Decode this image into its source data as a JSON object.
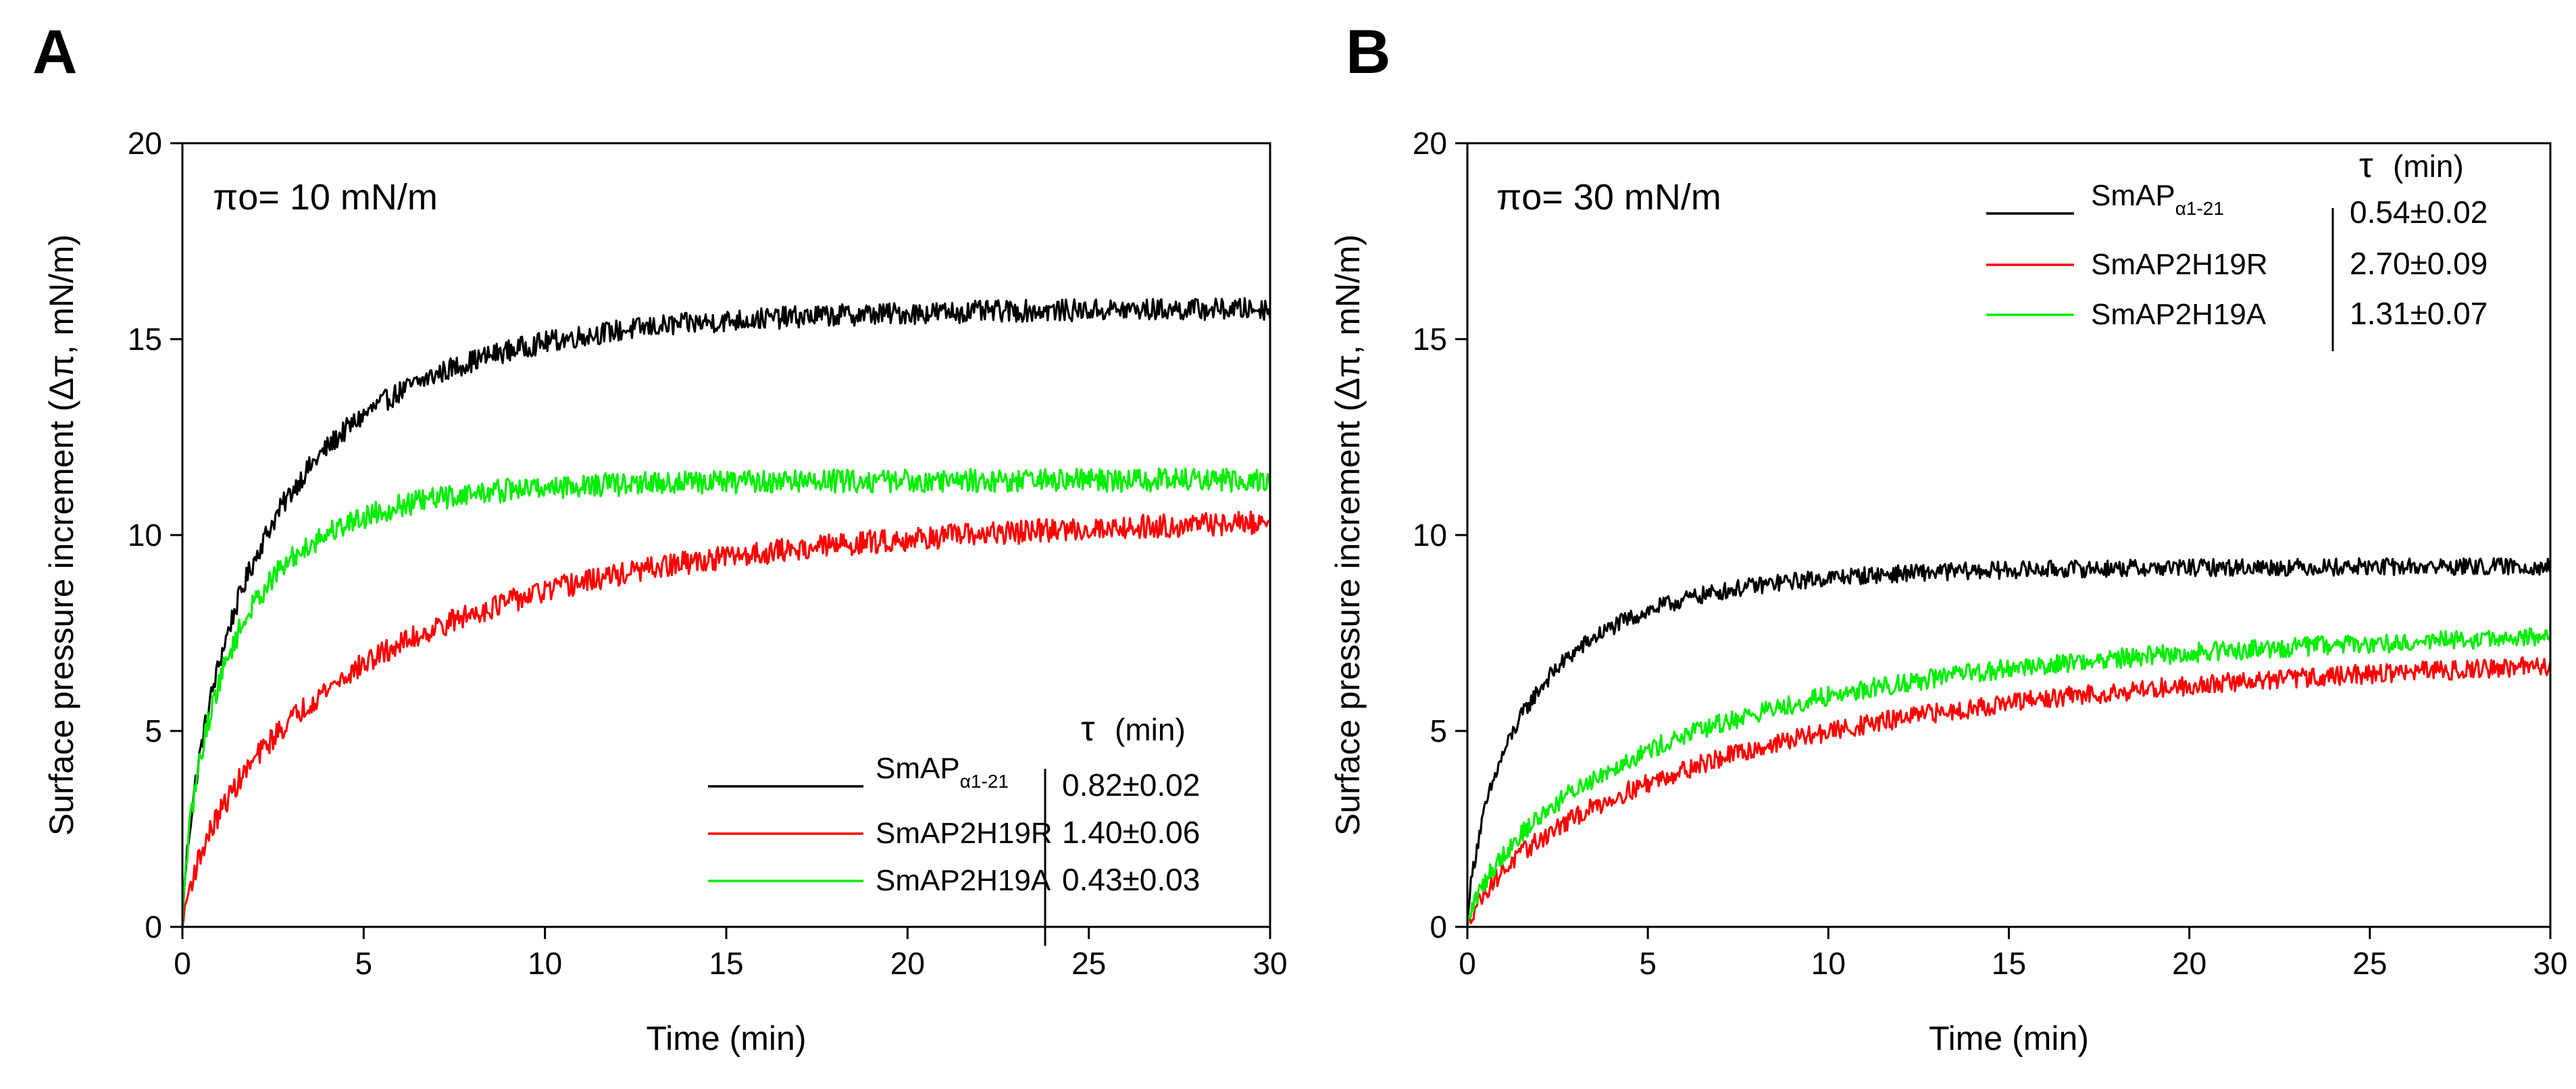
{
  "chart_data": [
    {
      "type": "line",
      "panel": "A",
      "annotation": "πo= 10 mN/m",
      "xlabel": "Time (min)",
      "ylabel": "Surface pressure increment (Δπ, mN/m)",
      "xlim": [
        0,
        30
      ],
      "ylim": [
        0,
        20
      ],
      "xticks": [
        0,
        5,
        10,
        15,
        20,
        25,
        30
      ],
      "yticks": [
        0,
        5,
        10,
        15,
        20
      ],
      "legend_position": "bottom-right",
      "tau_header_symbol": "τ",
      "tau_header_unit": "(min)",
      "series": [
        {
          "name_main": "SmAP",
          "name_sub": "α1-21",
          "tau": "0.82±0.02",
          "color": "#000000",
          "amplitude": 15.8,
          "time_constant": 2.3,
          "noise": 0.28
        },
        {
          "name_main": "SmAP2H19R",
          "name_sub": "",
          "tau": "1.40±0.06",
          "color": "#ff0000",
          "amplitude": 10.6,
          "time_constant": 5.0,
          "noise": 0.3
        },
        {
          "name_main": "SmAP2H19A",
          "name_sub": "",
          "tau": "0.43±0.03",
          "color": "#00ee00",
          "amplitude": 11.4,
          "time_constant": 1.4,
          "noise": 0.3
        }
      ]
    },
    {
      "type": "line",
      "panel": "B",
      "annotation": "πo= 30 mN/m",
      "xlabel": "Time (min)",
      "ylabel": "Surface pressure increment (Δπ, mN/m)",
      "xlim": [
        0,
        30
      ],
      "ylim": [
        0,
        20
      ],
      "xticks": [
        0,
        5,
        10,
        15,
        20,
        25,
        30
      ],
      "yticks": [
        0,
        5,
        10,
        15,
        20
      ],
      "legend_position": "top-right",
      "tau_header_symbol": "τ",
      "tau_header_unit": "(min)",
      "series": [
        {
          "name_main": "SmAP",
          "name_sub": "α1-21",
          "tau": "0.54±0.02",
          "color": "#000000",
          "amplitude": 9.2,
          "time_constant": 1.8,
          "noise": 0.22
        },
        {
          "name_main": "SmAP2H19R",
          "name_sub": "",
          "tau": "2.70±0.09",
          "color": "#ff0000",
          "amplitude": 7.2,
          "time_constant": 8.0,
          "noise": 0.25
        },
        {
          "name_main": "SmAP2H19A",
          "name_sub": "",
          "tau": "1.31±0.07",
          "color": "#00ee00",
          "amplitude": 7.7,
          "time_constant": 6.0,
          "noise": 0.25
        }
      ]
    }
  ]
}
